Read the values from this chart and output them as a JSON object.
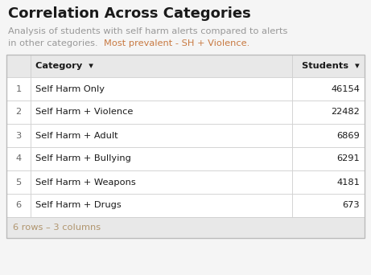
{
  "title": "Correlation Across Categories",
  "subtitle_gray1": "Analysis of students with self harm alerts compared to alerts",
  "subtitle_gray2": "in other categories.  ",
  "subtitle_orange": "Most prevalent - SH + Violence.",
  "subtitle_color": "#999999",
  "highlight_color": "#c87941",
  "col_headers": [
    "Category",
    "Students"
  ],
  "rows": [
    [
      "1",
      "Self Harm Only",
      "46154"
    ],
    [
      "2",
      "Self Harm + Violence",
      "22482"
    ],
    [
      "3",
      "Self Harm + Adult",
      "6869"
    ],
    [
      "4",
      "Self Harm + Bullying",
      "6291"
    ],
    [
      "5",
      "Self Harm + Weapons",
      "4181"
    ],
    [
      "6",
      "Self Harm + Drugs",
      "673"
    ]
  ],
  "footer": "6 rows – 3 columns",
  "footer_color": "#b0956e",
  "bg_color": "#f5f5f5",
  "white": "#ffffff",
  "header_bg": "#e8e8e8",
  "border_color": "#cccccc",
  "title_fontsize": 13,
  "subtitle_fontsize": 8.2,
  "table_fontsize": 8.2,
  "footer_fontsize": 8.2
}
